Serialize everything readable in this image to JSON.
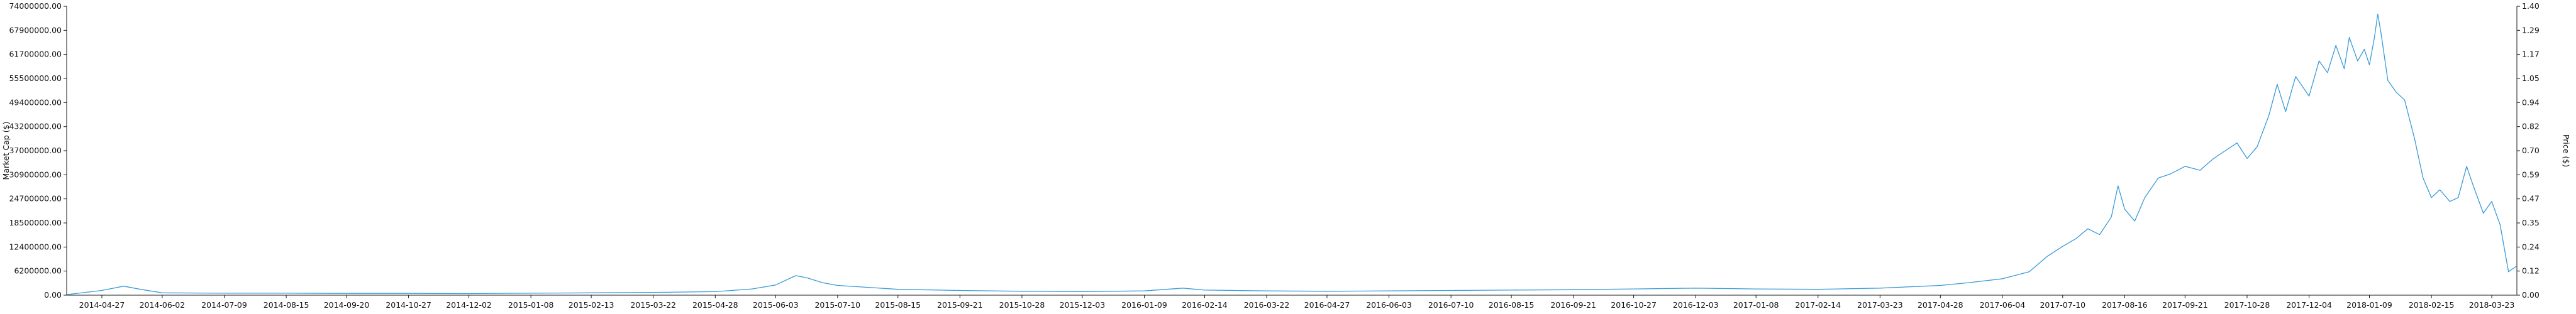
{
  "chart_data": {
    "type": "line",
    "title": "",
    "y_left": {
      "label": "Market Cap ($)",
      "min": 0,
      "max": 74000000,
      "ticks": [
        "0.00",
        "6200000.00",
        "12400000.00",
        "18500000.00",
        "24700000.00",
        "30900000.00",
        "37000000.00",
        "43200000.00",
        "49400000.00",
        "55500000.00",
        "61700000.00",
        "67900000.00",
        "74000000.00"
      ]
    },
    "y_right": {
      "label": "Price ($)",
      "min": 0,
      "max": 1.4,
      "ticks": [
        "0.00",
        "0.12",
        "0.24",
        "0.35",
        "0.47",
        "0.59",
        "0.70",
        "0.82",
        "0.94",
        "1.05",
        "1.17",
        "1.29",
        "1.40"
      ]
    },
    "x_axis": {
      "type": "date",
      "start": "2014-04-06",
      "end": "2018-04-07",
      "ticks": [
        "2014-04-27",
        "2014-06-02",
        "2014-07-09",
        "2014-08-15",
        "2014-09-20",
        "2014-10-27",
        "2014-12-02",
        "2015-01-08",
        "2015-02-13",
        "2015-03-22",
        "2015-04-28",
        "2015-06-03",
        "2015-07-10",
        "2015-08-15",
        "2015-09-21",
        "2015-10-28",
        "2015-12-03",
        "2016-01-09",
        "2016-02-14",
        "2016-03-22",
        "2016-04-27",
        "2016-06-03",
        "2016-07-10",
        "2016-08-15",
        "2016-09-21",
        "2016-10-27",
        "2016-12-03",
        "2017-01-08",
        "2017-02-14",
        "2017-03-23",
        "2017-04-28",
        "2017-06-04",
        "2017-07-10",
        "2017-08-16",
        "2017-09-21",
        "2017-10-28",
        "2017-12-04",
        "2018-01-09",
        "2018-02-15",
        "2018-03-23"
      ]
    },
    "series": [
      {
        "name": "Market Cap ($)",
        "color": "#3a9ad9",
        "axis": "left",
        "points": [
          [
            "2014-04-06",
            150000
          ],
          [
            "2014-04-27",
            1200000
          ],
          [
            "2014-05-10",
            2300000
          ],
          [
            "2014-05-20",
            1500000
          ],
          [
            "2014-06-02",
            600000
          ],
          [
            "2014-07-09",
            500000
          ],
          [
            "2014-08-15",
            500000
          ],
          [
            "2014-09-20",
            450000
          ],
          [
            "2014-10-27",
            450000
          ],
          [
            "2014-12-02",
            400000
          ],
          [
            "2015-01-08",
            500000
          ],
          [
            "2015-02-13",
            600000
          ],
          [
            "2015-03-22",
            700000
          ],
          [
            "2015-04-28",
            900000
          ],
          [
            "2015-05-20",
            1600000
          ],
          [
            "2015-06-03",
            2600000
          ],
          [
            "2015-06-15",
            5000000
          ],
          [
            "2015-06-22",
            4400000
          ],
          [
            "2015-07-01",
            3200000
          ],
          [
            "2015-07-10",
            2500000
          ],
          [
            "2015-08-15",
            1500000
          ],
          [
            "2015-09-21",
            1200000
          ],
          [
            "2015-10-28",
            1000000
          ],
          [
            "2015-12-03",
            900000
          ],
          [
            "2016-01-09",
            1100000
          ],
          [
            "2016-02-01",
            1800000
          ],
          [
            "2016-02-14",
            1300000
          ],
          [
            "2016-03-22",
            1100000
          ],
          [
            "2016-04-27",
            1000000
          ],
          [
            "2016-06-03",
            1100000
          ],
          [
            "2016-07-10",
            1200000
          ],
          [
            "2016-08-15",
            1300000
          ],
          [
            "2016-09-21",
            1400000
          ],
          [
            "2016-10-27",
            1600000
          ],
          [
            "2016-12-03",
            1800000
          ],
          [
            "2017-01-08",
            1600000
          ],
          [
            "2017-02-14",
            1500000
          ],
          [
            "2017-03-23",
            1800000
          ],
          [
            "2017-04-28",
            2500000
          ],
          [
            "2017-05-15",
            3200000
          ],
          [
            "2017-06-04",
            4200000
          ],
          [
            "2017-06-20",
            6000000
          ],
          [
            "2017-07-01",
            10000000
          ],
          [
            "2017-07-10",
            12500000
          ],
          [
            "2017-07-18",
            14500000
          ],
          [
            "2017-07-25",
            17000000
          ],
          [
            "2017-08-01",
            15500000
          ],
          [
            "2017-08-08",
            20000000
          ],
          [
            "2017-08-12",
            28000000
          ],
          [
            "2017-08-16",
            22000000
          ],
          [
            "2017-08-22",
            19000000
          ],
          [
            "2017-08-28",
            25000000
          ],
          [
            "2017-09-05",
            30000000
          ],
          [
            "2017-09-12",
            31000000
          ],
          [
            "2017-09-21",
            33000000
          ],
          [
            "2017-09-30",
            32000000
          ],
          [
            "2017-10-08",
            35000000
          ],
          [
            "2017-10-15",
            37000000
          ],
          [
            "2017-10-22",
            39000000
          ],
          [
            "2017-10-28",
            35000000
          ],
          [
            "2017-11-03",
            38000000
          ],
          [
            "2017-11-10",
            46000000
          ],
          [
            "2017-11-15",
            54000000
          ],
          [
            "2017-11-20",
            47000000
          ],
          [
            "2017-11-26",
            56000000
          ],
          [
            "2017-12-04",
            51000000
          ],
          [
            "2017-12-10",
            60000000
          ],
          [
            "2017-12-15",
            57000000
          ],
          [
            "2017-12-20",
            64000000
          ],
          [
            "2017-12-25",
            58000000
          ],
          [
            "2017-12-28",
            66000000
          ],
          [
            "2018-01-02",
            60000000
          ],
          [
            "2018-01-06",
            63000000
          ],
          [
            "2018-01-09",
            59000000
          ],
          [
            "2018-01-12",
            66000000
          ],
          [
            "2018-01-14",
            72000000
          ],
          [
            "2018-01-16",
            67000000
          ],
          [
            "2018-01-20",
            55000000
          ],
          [
            "2018-01-25",
            52000000
          ],
          [
            "2018-01-30",
            50000000
          ],
          [
            "2018-02-05",
            40000000
          ],
          [
            "2018-02-10",
            30000000
          ],
          [
            "2018-02-15",
            25000000
          ],
          [
            "2018-02-20",
            27000000
          ],
          [
            "2018-02-26",
            24000000
          ],
          [
            "2018-03-03",
            25000000
          ],
          [
            "2018-03-08",
            33000000
          ],
          [
            "2018-03-12",
            28000000
          ],
          [
            "2018-03-18",
            21000000
          ],
          [
            "2018-03-23",
            24000000
          ],
          [
            "2018-03-28",
            18000000
          ],
          [
            "2018-04-02",
            6000000
          ],
          [
            "2018-04-07",
            7500000
          ]
        ]
      }
    ]
  }
}
